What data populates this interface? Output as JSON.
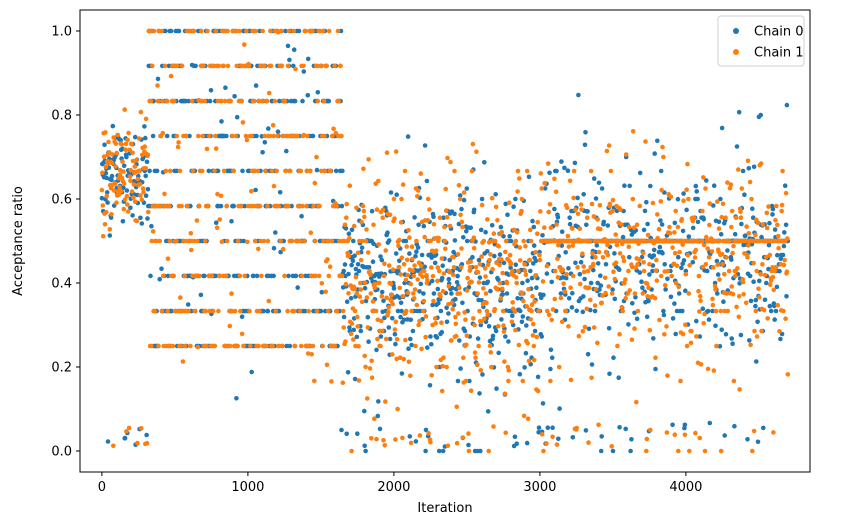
{
  "chart_data": {
    "type": "scatter",
    "title": "",
    "xlabel": "Iteration",
    "ylabel": "Acceptance ratio",
    "xlim": [
      -150,
      4850
    ],
    "ylim": [
      -0.05,
      1.05
    ],
    "xticks": [
      0,
      1000,
      2000,
      3000,
      4000
    ],
    "yticks": [
      0.0,
      0.2,
      0.4,
      0.6,
      0.8,
      1.0
    ],
    "xtick_labels": [
      "0",
      "1000",
      "2000",
      "3000",
      "4000"
    ],
    "ytick_labels": [
      "0.0",
      "0.2",
      "0.4",
      "0.6",
      "0.8",
      "1.0"
    ],
    "grid": false,
    "legend": {
      "position": "top-right"
    },
    "series": [
      {
        "name": "Chain 0",
        "color": "#1f77b4"
      },
      {
        "name": "Chain 1",
        "color": "#ff7f0e"
      }
    ],
    "regimes": [
      {
        "x_start": 0,
        "x_end": 320,
        "y_center": 0.66,
        "y_spread": 0.08
      },
      {
        "x_start": 320,
        "x_end": 1650,
        "y_center": 0.6,
        "y_spread": 0.22,
        "levels": [
          0.25,
          0.333,
          0.417,
          0.5,
          0.583,
          0.667,
          0.75,
          0.833,
          0.917,
          1.0
        ]
      },
      {
        "x_start": 1650,
        "x_end": 3000,
        "y_center": 0.4,
        "y_spread": 0.18
      },
      {
        "x_start": 3000,
        "x_end": 4000,
        "y_center": 0.45,
        "y_spread": 0.17
      },
      {
        "x_start": 4000,
        "x_end": 4700,
        "y_center": 0.47,
        "y_spread": 0.17
      }
    ],
    "n_iterations": 4700
  }
}
